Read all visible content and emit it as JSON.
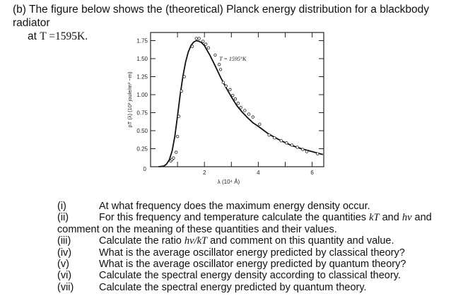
{
  "intro": {
    "line1": "(b) The figure below shows the (theoretical) Planck energy distribution for a blackbody radiator",
    "line2_prefix": "at ",
    "line2_temp": "T =1595K."
  },
  "chart_data": {
    "type": "line",
    "title": "",
    "annotation": "T = 1595°K",
    "xlabel": "λ (10⁴ Å)",
    "ylabel": "ρT (λ) (10³ joule/m³ −m)",
    "x_ticks": [
      "0",
      "2",
      "4",
      "6"
    ],
    "y_ticks": [
      "0.25",
      "0.50",
      "0.75",
      "1.00",
      "1.25",
      "1.50",
      "1.75"
    ],
    "y_zero_label": "0",
    "xlim": [
      0,
      6.4
    ],
    "ylim": [
      0,
      1.85
    ],
    "grid": false,
    "series": [
      {
        "name": "theory curve",
        "x": [
          0.3,
          0.5,
          0.6,
          0.7,
          0.8,
          0.9,
          1.0,
          1.1,
          1.2,
          1.3,
          1.4,
          1.5,
          1.6,
          1.7,
          1.8,
          1.9,
          2.0,
          2.2,
          2.4,
          2.6,
          2.8,
          3.0,
          3.2,
          3.4,
          3.6,
          3.8,
          4.0,
          4.4,
          4.8,
          5.2,
          5.6,
          6.0,
          6.4
        ],
        "y": [
          0.0,
          0.01,
          0.04,
          0.1,
          0.22,
          0.42,
          0.7,
          1.0,
          1.25,
          1.45,
          1.59,
          1.68,
          1.73,
          1.75,
          1.74,
          1.72,
          1.68,
          1.55,
          1.4,
          1.24,
          1.1,
          0.97,
          0.85,
          0.76,
          0.68,
          0.61,
          0.56,
          0.45,
          0.37,
          0.3,
          0.25,
          0.21,
          0.17
        ]
      },
      {
        "name": "data points",
        "x": [
          0.75,
          0.8,
          0.85,
          0.95,
          1.0,
          1.05,
          1.15,
          1.25,
          1.55,
          1.7,
          1.8,
          1.95,
          2.05,
          2.15,
          2.4,
          2.55,
          2.6,
          2.7,
          2.8,
          2.95,
          3.05,
          3.15,
          3.25,
          3.35,
          3.5,
          3.65,
          3.8,
          4.05,
          4.4,
          4.6,
          4.85,
          5.05,
          5.25,
          5.45,
          5.65,
          5.8,
          6.2
        ],
        "y": [
          0.08,
          0.1,
          0.12,
          0.2,
          0.42,
          0.7,
          1.05,
          1.25,
          1.67,
          1.78,
          1.78,
          1.74,
          1.7,
          1.65,
          1.55,
          1.42,
          1.35,
          1.17,
          1.12,
          1.07,
          0.99,
          0.94,
          0.88,
          0.82,
          0.78,
          0.73,
          0.69,
          0.59,
          0.44,
          0.4,
          0.36,
          0.33,
          0.3,
          0.27,
          0.24,
          0.21,
          0.18
        ]
      }
    ]
  },
  "questions": [
    {
      "num": "(i)",
      "text": "At what frequency does the maximum energy density occur."
    },
    {
      "num": "(ii)",
      "text_a": " For this frequency and temperature calculate the quantities ",
      "kT": "kT",
      "text_b": " and ",
      "hv": "hv",
      "text_c": "  and",
      "cont": "comment on the meaning of these quantities and their values."
    },
    {
      "num": "(iii)",
      "text_a": "Calculate the ratio ",
      "ratio": "hv/kT",
      "text_b": "  and comment on this quantity and value."
    },
    {
      "num": "(iv)",
      "text": "What is the average oscillator energy predicted by classical theory?"
    },
    {
      "num": "(v)",
      "text": "What is the average oscillator energy predicted by quantum theory?"
    },
    {
      "num": "(vi)",
      "text": "Calculate the spectral energy density according to classical theory."
    },
    {
      "num": "(vii)",
      "text": "Calculate the spectral energy predicted by quantum theory."
    }
  ]
}
